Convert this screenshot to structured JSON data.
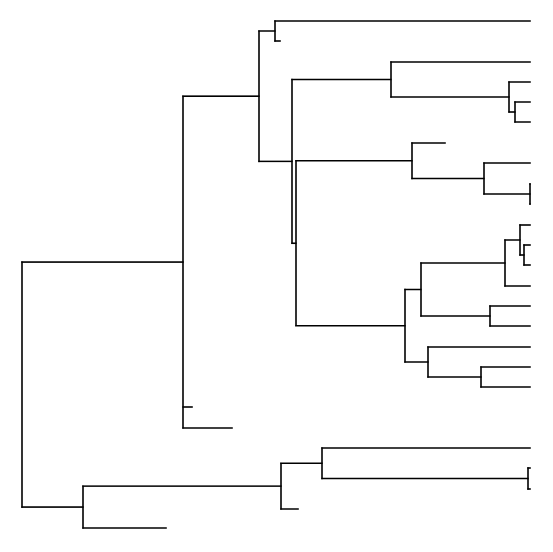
{
  "diagram": {
    "type": "phylogenetic-tree",
    "orientation": "left-to-right",
    "line_color": "#000000",
    "background": "#ffffff",
    "leaf_labels": "none"
  }
}
